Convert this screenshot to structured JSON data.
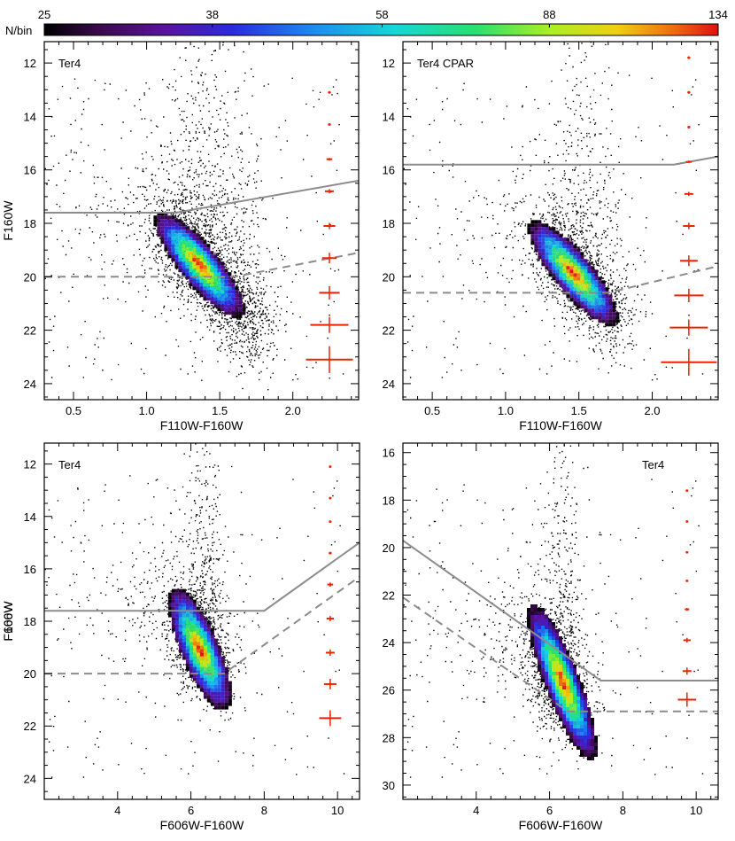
{
  "colorbar": {
    "label": "N/bin",
    "ticks": [
      "25",
      "38",
      "58",
      "88",
      "134"
    ],
    "tick_values": [
      25,
      38,
      58,
      88,
      134
    ],
    "vmin": 25,
    "vmax": 134
  },
  "chart_data": [
    {
      "type": "scatter",
      "panel": "top-left",
      "label": "Ter4",
      "xlabel": "F110W-F160W",
      "ylabel": "F160W",
      "xlim": [
        0.3,
        2.45
      ],
      "ylim": [
        11.2,
        24.6
      ],
      "y_inverted": true,
      "xticks": [
        0.5,
        1.0,
        1.5,
        2.0
      ],
      "xtick_labels": [
        "0.5",
        "1.0",
        "1.5",
        "2.0"
      ],
      "yticks": [
        12,
        14,
        16,
        18,
        20,
        22,
        24
      ],
      "ytick_labels": [
        "12",
        "14",
        "16",
        "18",
        "20",
        "22",
        "24"
      ],
      "solid_line": [
        [
          0.3,
          17.6
        ],
        [
          1.2,
          17.6
        ],
        [
          2.45,
          16.4
        ]
      ],
      "dashed_line": [
        [
          0.3,
          20.0
        ],
        [
          1.6,
          20.0
        ],
        [
          2.45,
          19.1
        ]
      ],
      "error_bars": [
        {
          "x": 2.25,
          "y": 13.1,
          "xerr": 0.01,
          "yerr": 0.05
        },
        {
          "x": 2.25,
          "y": 14.3,
          "xerr": 0.01,
          "yerr": 0.05
        },
        {
          "x": 2.25,
          "y": 15.6,
          "xerr": 0.02,
          "yerr": 0.05
        },
        {
          "x": 2.25,
          "y": 16.8,
          "xerr": 0.03,
          "yerr": 0.08
        },
        {
          "x": 2.25,
          "y": 18.1,
          "xerr": 0.04,
          "yerr": 0.12
        },
        {
          "x": 2.25,
          "y": 19.3,
          "xerr": 0.05,
          "yerr": 0.2
        },
        {
          "x": 2.25,
          "y": 20.6,
          "xerr": 0.07,
          "yerr": 0.25
        },
        {
          "x": 2.25,
          "y": 21.8,
          "xerr": 0.13,
          "yerr": 0.3
        },
        {
          "x": 2.25,
          "y": 23.1,
          "xerr": 0.16,
          "yerr": 0.5
        }
      ],
      "density_peak": [
        1.35,
        19.5
      ],
      "ridge": [
        [
          1.15,
          18.0
        ],
        [
          1.3,
          19.0
        ],
        [
          1.45,
          20.0
        ],
        [
          1.6,
          21.0
        ],
        [
          1.75,
          22.0
        ]
      ]
    },
    {
      "type": "scatter",
      "panel": "top-right",
      "label": "Ter4 CPAR",
      "xlabel": "F110W-F160W",
      "ylabel": "",
      "xlim": [
        0.3,
        2.45
      ],
      "ylim": [
        11.2,
        24.6
      ],
      "y_inverted": true,
      "xticks": [
        0.5,
        1.0,
        1.5,
        2.0
      ],
      "xtick_labels": [
        "0.5",
        "1.0",
        "1.5",
        "2.0"
      ],
      "yticks": [
        12,
        14,
        16,
        18,
        20,
        22,
        24
      ],
      "ytick_labels": [
        "12",
        "14",
        "16",
        "18",
        "20",
        "22",
        "24"
      ],
      "solid_line": [
        [
          0.3,
          15.8
        ],
        [
          2.15,
          15.8
        ],
        [
          2.45,
          15.5
        ]
      ],
      "dashed_line": [
        [
          0.3,
          20.6
        ],
        [
          1.7,
          20.6
        ],
        [
          2.45,
          19.6
        ]
      ],
      "error_bars": [
        {
          "x": 2.25,
          "y": 11.8,
          "xerr": 0.01,
          "yerr": 0.05
        },
        {
          "x": 2.25,
          "y": 13.1,
          "xerr": 0.01,
          "yerr": 0.05
        },
        {
          "x": 2.25,
          "y": 14.4,
          "xerr": 0.01,
          "yerr": 0.05
        },
        {
          "x": 2.25,
          "y": 15.7,
          "xerr": 0.02,
          "yerr": 0.05
        },
        {
          "x": 2.25,
          "y": 16.9,
          "xerr": 0.03,
          "yerr": 0.08
        },
        {
          "x": 2.25,
          "y": 18.1,
          "xerr": 0.04,
          "yerr": 0.12
        },
        {
          "x": 2.25,
          "y": 19.4,
          "xerr": 0.06,
          "yerr": 0.2
        },
        {
          "x": 2.25,
          "y": 20.7,
          "xerr": 0.1,
          "yerr": 0.25
        },
        {
          "x": 2.25,
          "y": 21.9,
          "xerr": 0.13,
          "yerr": 0.3
        },
        {
          "x": 2.25,
          "y": 23.2,
          "xerr": 0.19,
          "yerr": 0.5
        }
      ],
      "density_peak": [
        1.45,
        19.8
      ],
      "ridge": [
        [
          1.3,
          18.6
        ],
        [
          1.45,
          19.6
        ],
        [
          1.6,
          20.6
        ],
        [
          1.75,
          21.6
        ]
      ]
    },
    {
      "type": "scatter",
      "panel": "bottom-left",
      "label": "Ter4",
      "xlabel": "F606W-F160W",
      "ylabel": "F160W",
      "xlim": [
        2.0,
        10.6
      ],
      "ylim": [
        11.2,
        24.8
      ],
      "y_inverted": true,
      "xticks": [
        4,
        6,
        8,
        10
      ],
      "xtick_labels": [
        "4",
        "6",
        "8",
        "10"
      ],
      "yticks": [
        12,
        14,
        16,
        18,
        20,
        22,
        24
      ],
      "ytick_labels": [
        "12",
        "14",
        "16",
        "18",
        "20",
        "22",
        "24"
      ],
      "solid_line": [
        [
          2.0,
          17.6
        ],
        [
          8.0,
          17.6
        ],
        [
          10.6,
          15.0
        ]
      ],
      "dashed_line": [
        [
          2.0,
          20.0
        ],
        [
          6.9,
          20.0
        ],
        [
          10.6,
          16.3
        ]
      ],
      "error_bars": [
        {
          "x": 9.8,
          "y": 12.1,
          "xerr": 0.02,
          "yerr": 0.05
        },
        {
          "x": 9.8,
          "y": 13.3,
          "xerr": 0.02,
          "yerr": 0.05
        },
        {
          "x": 9.8,
          "y": 14.2,
          "xerr": 0.02,
          "yerr": 0.05
        },
        {
          "x": 9.8,
          "y": 15.4,
          "xerr": 0.04,
          "yerr": 0.05
        },
        {
          "x": 9.8,
          "y": 16.6,
          "xerr": 0.08,
          "yerr": 0.08
        },
        {
          "x": 9.8,
          "y": 17.9,
          "xerr": 0.1,
          "yerr": 0.1
        },
        {
          "x": 9.8,
          "y": 19.2,
          "xerr": 0.12,
          "yerr": 0.12
        },
        {
          "x": 9.8,
          "y": 20.4,
          "xerr": 0.17,
          "yerr": 0.2
        },
        {
          "x": 9.8,
          "y": 21.7,
          "xerr": 0.3,
          "yerr": 0.3
        }
      ],
      "density_peak": [
        6.2,
        19.0
      ],
      "ridge": [
        [
          6.0,
          17.8
        ],
        [
          6.2,
          18.8
        ],
        [
          6.6,
          19.8
        ]
      ]
    },
    {
      "type": "scatter",
      "panel": "bottom-right",
      "label": "Ter4",
      "xlabel": "F606W-F160W",
      "ylabel": "F606W",
      "xlim": [
        2.0,
        10.6
      ],
      "ylim": [
        15.6,
        30.6
      ],
      "y_inverted": true,
      "xticks": [
        4,
        6,
        8,
        10
      ],
      "xtick_labels": [
        "4",
        "6",
        "8",
        "10"
      ],
      "yticks": [
        16,
        18,
        20,
        22,
        24,
        26,
        28,
        30
      ],
      "ytick_labels": [
        "16",
        "18",
        "20",
        "22",
        "24",
        "26",
        "28",
        "30"
      ],
      "solid_line": [
        [
          2.0,
          19.7
        ],
        [
          7.4,
          25.6
        ],
        [
          10.6,
          25.6
        ]
      ],
      "dashed_line": [
        [
          2.0,
          22.1
        ],
        [
          6.5,
          26.9
        ],
        [
          10.6,
          26.9
        ]
      ],
      "error_bars": [
        {
          "x": 9.75,
          "y": 17.6,
          "xerr": 0.02,
          "yerr": 0.05
        },
        {
          "x": 9.75,
          "y": 18.9,
          "xerr": 0.02,
          "yerr": 0.05
        },
        {
          "x": 9.75,
          "y": 20.2,
          "xerr": 0.02,
          "yerr": 0.05
        },
        {
          "x": 9.75,
          "y": 21.4,
          "xerr": 0.02,
          "yerr": 0.05
        },
        {
          "x": 9.75,
          "y": 22.6,
          "xerr": 0.06,
          "yerr": 0.06
        },
        {
          "x": 9.75,
          "y": 23.9,
          "xerr": 0.1,
          "yerr": 0.1
        },
        {
          "x": 9.75,
          "y": 25.2,
          "xerr": 0.12,
          "yerr": 0.15
        },
        {
          "x": 9.75,
          "y": 26.4,
          "xerr": 0.25,
          "yerr": 0.3
        }
      ],
      "density_peak": [
        6.3,
        25.6
      ],
      "ridge": [
        [
          5.9,
          24.0
        ],
        [
          6.2,
          25.5
        ],
        [
          6.6,
          26.8
        ]
      ]
    }
  ]
}
